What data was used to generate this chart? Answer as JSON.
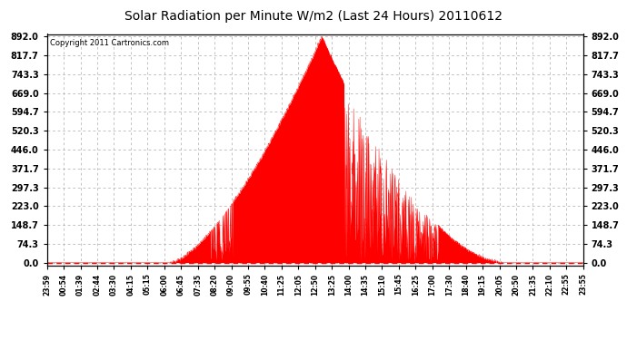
{
  "title": "Solar Radiation per Minute W/m2 (Last 24 Hours) 20110612",
  "copyright": "Copyright 2011 Cartronics.com",
  "yticks": [
    0.0,
    74.3,
    148.7,
    223.0,
    297.3,
    371.7,
    446.0,
    520.3,
    594.7,
    669.0,
    743.3,
    817.7,
    892.0
  ],
  "ymax": 892.0,
  "ymin": 0.0,
  "fill_color": "#ff0000",
  "dashed_line_color": "#ff0000",
  "grid_color": "#aaaaaa",
  "background_color": "#ffffff",
  "plot_bg_color": "#ffffff",
  "x_labels": [
    "23:59",
    "00:54",
    "01:39",
    "02:44",
    "03:30",
    "04:15",
    "05:15",
    "06:00",
    "06:45",
    "07:35",
    "08:20",
    "09:00",
    "09:55",
    "10:40",
    "11:25",
    "12:05",
    "12:50",
    "13:25",
    "14:00",
    "14:35",
    "15:10",
    "15:45",
    "16:25",
    "17:00",
    "17:30",
    "18:40",
    "19:15",
    "20:05",
    "20:50",
    "21:35",
    "22:10",
    "22:55",
    "23:55"
  ],
  "num_points": 1440,
  "rise_hour": 5.5,
  "set_hour": 20.5,
  "peak_hour": 12.3,
  "peak_val": 892.0
}
